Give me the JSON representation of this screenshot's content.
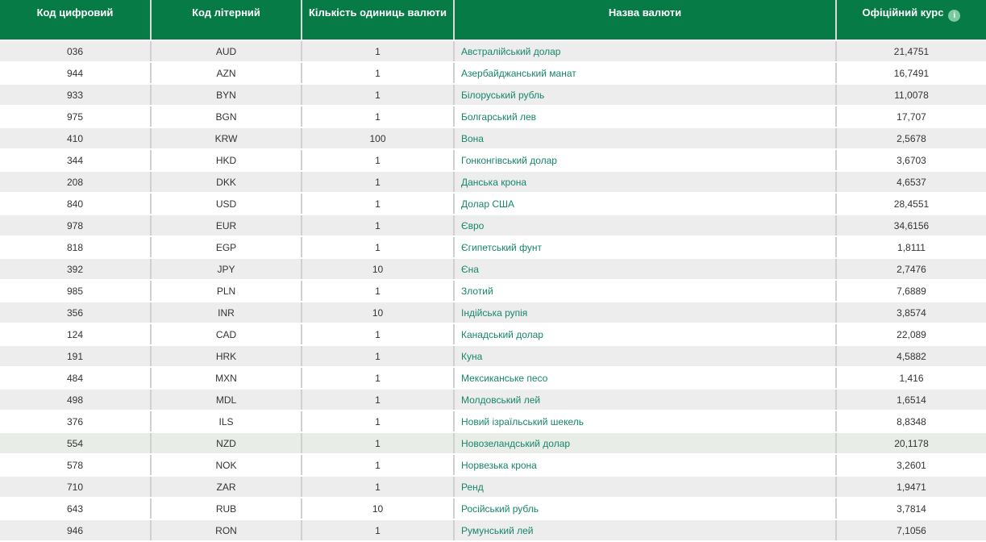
{
  "colors": {
    "header_bg": "#077b46",
    "header_text": "#ffffff",
    "row_alt_bg": "#ededed",
    "row_bg": "#ffffff",
    "highlight_bg": "#e9ede7",
    "link_color": "#17866a",
    "text_color": "#333333",
    "border_color": "#d0d0d0",
    "info_icon_bg": "#7cc9a1"
  },
  "table": {
    "columns": [
      {
        "key": "code",
        "label": "Код цифровий"
      },
      {
        "key": "letter",
        "label": "Код літерний"
      },
      {
        "key": "units",
        "label": "Кількість одиниць валюти"
      },
      {
        "key": "name",
        "label": "Назва валюти"
      },
      {
        "key": "rate",
        "label": "Офіційний курс"
      }
    ],
    "info_icon_glyph": "i",
    "rows": [
      {
        "code": "036",
        "letter": "AUD",
        "units": "1",
        "name": "Австралійський долар",
        "rate": "21,4751"
      },
      {
        "code": "944",
        "letter": "AZN",
        "units": "1",
        "name": "Азербайджанський манат",
        "rate": "16,7491"
      },
      {
        "code": "933",
        "letter": "BYN",
        "units": "1",
        "name": "Білоруський рубль",
        "rate": "11,0078"
      },
      {
        "code": "975",
        "letter": "BGN",
        "units": "1",
        "name": "Болгарський лев",
        "rate": "17,707"
      },
      {
        "code": "410",
        "letter": "KRW",
        "units": "100",
        "name": "Вона",
        "rate": "2,5678"
      },
      {
        "code": "344",
        "letter": "HKD",
        "units": "1",
        "name": "Гонконгівський долар",
        "rate": "3,6703"
      },
      {
        "code": "208",
        "letter": "DKK",
        "units": "1",
        "name": "Данська крона",
        "rate": "4,6537"
      },
      {
        "code": "840",
        "letter": "USD",
        "units": "1",
        "name": "Долар США",
        "rate": "28,4551"
      },
      {
        "code": "978",
        "letter": "EUR",
        "units": "1",
        "name": "Євро",
        "rate": "34,6156"
      },
      {
        "code": "818",
        "letter": "EGP",
        "units": "1",
        "name": "Єгипетський фунт",
        "rate": "1,8111"
      },
      {
        "code": "392",
        "letter": "JPY",
        "units": "10",
        "name": "Єна",
        "rate": "2,7476"
      },
      {
        "code": "985",
        "letter": "PLN",
        "units": "1",
        "name": "Злотий",
        "rate": "7,6889"
      },
      {
        "code": "356",
        "letter": "INR",
        "units": "10",
        "name": "Індійська рупія",
        "rate": "3,8574"
      },
      {
        "code": "124",
        "letter": "CAD",
        "units": "1",
        "name": "Канадський долар",
        "rate": "22,089"
      },
      {
        "code": "191",
        "letter": "HRK",
        "units": "1",
        "name": "Куна",
        "rate": "4,5882"
      },
      {
        "code": "484",
        "letter": "MXN",
        "units": "1",
        "name": "Мексиканське песо",
        "rate": "1,416"
      },
      {
        "code": "498",
        "letter": "MDL",
        "units": "1",
        "name": "Молдовський лей",
        "rate": "1,6514"
      },
      {
        "code": "376",
        "letter": "ILS",
        "units": "1",
        "name": "Новий ізраїльський шекель",
        "rate": "8,8348"
      },
      {
        "code": "554",
        "letter": "NZD",
        "units": "1",
        "name": "Новозеландський долар",
        "rate": "20,1178",
        "highlighted": true
      },
      {
        "code": "578",
        "letter": "NOK",
        "units": "1",
        "name": "Норвезька крона",
        "rate": "3,2601"
      },
      {
        "code": "710",
        "letter": "ZAR",
        "units": "1",
        "name": "Ренд",
        "rate": "1,9471"
      },
      {
        "code": "643",
        "letter": "RUB",
        "units": "10",
        "name": "Російський рубль",
        "rate": "3,7814"
      },
      {
        "code": "946",
        "letter": "RON",
        "units": "1",
        "name": "Румунський лей",
        "rate": "7,1056"
      }
    ]
  }
}
